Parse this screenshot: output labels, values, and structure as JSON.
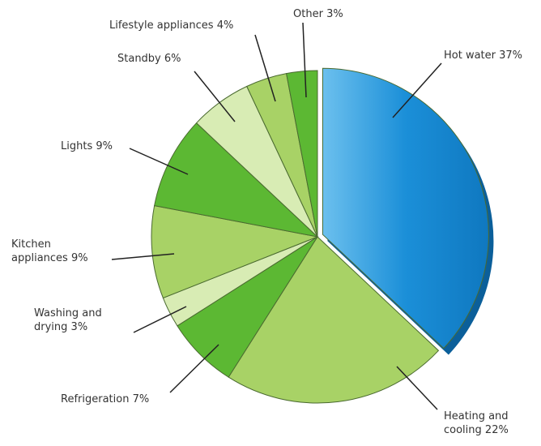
{
  "chart_data": {
    "type": "pie",
    "categories": [
      "Hot water",
      "Heating and cooling",
      "Refrigeration",
      "Washing and drying",
      "Kitchen appliances",
      "Lights",
      "Standby",
      "Lifestyle appliances",
      "Other"
    ],
    "values": [
      37,
      22,
      7,
      3,
      9,
      9,
      6,
      4,
      3
    ],
    "value_labels": [
      "37%",
      "22%",
      "7%",
      "3%",
      "9%",
      "9%",
      "6%",
      "4%",
      "3%"
    ],
    "colors": [
      "#1b8fd8",
      "#a8d266",
      "#5cb833",
      "#d8ecb4",
      "#a8d266",
      "#5cb833",
      "#d8ecb4",
      "#a8d266",
      "#5cb833"
    ]
  }
}
